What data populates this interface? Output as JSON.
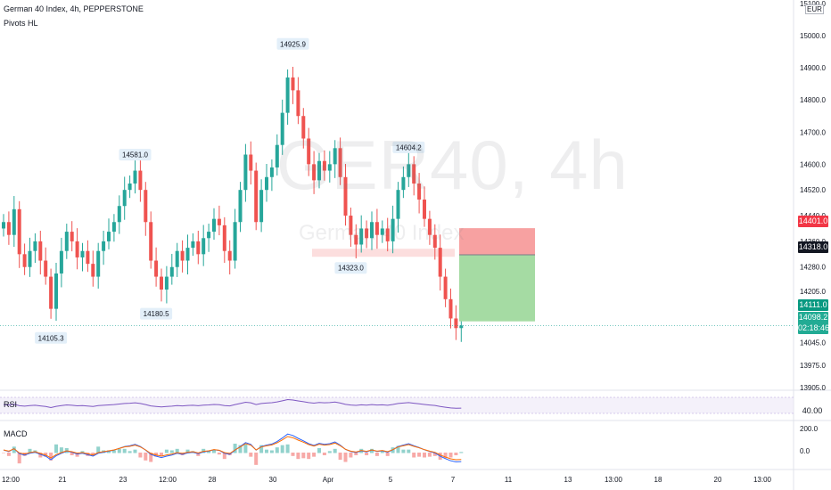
{
  "header": {
    "title": "German 40 Index, 4h, PEPPERSTONE",
    "indicator": "Pivots HL"
  },
  "watermark": {
    "symbol": "GER40, 4h",
    "description": "German 40 Index"
  },
  "currency": "EUR",
  "price_axis": {
    "ticks": [
      "15100.0",
      "15000.0",
      "14900.0",
      "14800.0",
      "14700.0",
      "14600.0",
      "14520.0",
      "14440.0",
      "14360.0",
      "14280.0",
      "14205.0",
      "14045.0",
      "13975.0",
      "13905.0"
    ],
    "top_partial": "15100.0"
  },
  "price_tags": {
    "stop": {
      "value": "14401.0",
      "color": "#f23645"
    },
    "entry": {
      "value": "14318.0",
      "color": "#131722"
    },
    "target": {
      "value": "14111.0",
      "color": "#089981"
    },
    "last": {
      "value": "14098.2",
      "countdown": "02:18:46",
      "color": "#22ab94"
    }
  },
  "pivots": [
    {
      "label": "14925.9",
      "kind": "high"
    },
    {
      "label": "14581.0",
      "kind": "high"
    },
    {
      "label": "14604.2",
      "kind": "high"
    },
    {
      "label": "14323.0",
      "kind": "low"
    },
    {
      "label": "14180.5",
      "kind": "low"
    },
    {
      "label": "14105.3",
      "kind": "low"
    }
  ],
  "rsi": {
    "label": "RSI",
    "value_tag": "40.00"
  },
  "macd": {
    "label": "MACD",
    "ticks": [
      "200.0",
      "0.0"
    ]
  },
  "time_axis": [
    "12:00",
    "21",
    "23",
    "12:00",
    "28",
    "30",
    "Apr",
    "5",
    "7",
    "11",
    "13",
    "13:00",
    "18",
    "20",
    "13:00"
  ],
  "colors": {
    "up": "#26a69a",
    "down": "#ef5350",
    "rsi_line": "#7e57c2",
    "macd_line": "#2962ff",
    "signal_line": "#ff6d00",
    "risk_zone": "#f7a1a1",
    "reward_zone": "#a5dba3",
    "range_band": "#fbd0d0"
  },
  "chart_data": {
    "type": "candlestick",
    "ylim": [
      13905,
      15100
    ],
    "closes": [
      14420,
      14380,
      14460,
      14320,
      14280,
      14330,
      14360,
      14300,
      14250,
      14150,
      14260,
      14330,
      14390,
      14360,
      14310,
      14330,
      14290,
      14250,
      14330,
      14360,
      14390,
      14420,
      14470,
      14520,
      14540,
      14580,
      14520,
      14420,
      14300,
      14250,
      14210,
      14250,
      14280,
      14330,
      14300,
      14340,
      14360,
      14320,
      14370,
      14390,
      14430,
      14410,
      14330,
      14300,
      14420,
      14520,
      14630,
      14580,
      14420,
      14520,
      14560,
      14590,
      14660,
      14760,
      14870,
      14830,
      14750,
      14680,
      14600,
      14550,
      14610,
      14580,
      14600,
      14650,
      14560,
      14440,
      14380,
      14350,
      14400,
      14370,
      14420,
      14380,
      14400,
      14360,
      14430,
      14520,
      14560,
      14600,
      14540,
      14490,
      14430,
      14380,
      14340,
      14250,
      14180,
      14120,
      14090,
      14098
    ],
    "pivots": [
      {
        "index": 55,
        "value": 14925.9,
        "type": "high"
      },
      {
        "index": 25,
        "value": 14581.0,
        "type": "high"
      },
      {
        "index": 77,
        "value": 14604.2,
        "type": "high"
      },
      {
        "index": 66,
        "value": 14323.0,
        "type": "low"
      },
      {
        "index": 29,
        "value": 14180.5,
        "type": "low"
      },
      {
        "index": 9,
        "value": 14105.3,
        "type": "low"
      }
    ],
    "position": {
      "stop": 14401.0,
      "entry": 14318.0,
      "target": 14111.0
    }
  }
}
